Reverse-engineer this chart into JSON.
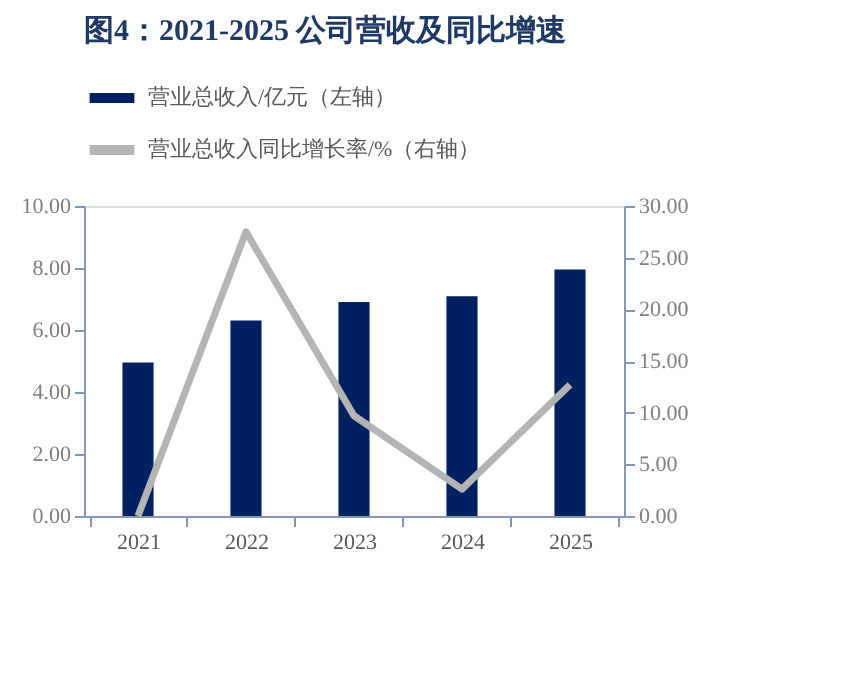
{
  "chart_data": {
    "type": "bar",
    "title": "图4：2021-2025 公司营收及同比增速",
    "categories": [
      "2021",
      "2022",
      "2023",
      "2024",
      "2025"
    ],
    "series": [
      {
        "name": "营业总收入/亿元（左轴）",
        "color": "#002060",
        "values": [
          4.95,
          6.31,
          6.9,
          7.09,
          7.95
        ]
      },
      {
        "name": "营业总收入同比增长率/%（右轴）",
        "type": "line",
        "axis": "y2",
        "color": "#b4b4b4",
        "values": [
          0,
          27.5,
          9.7,
          2.6,
          12.7
        ]
      }
    ],
    "ylim": [
      0,
      10
    ],
    "yticks": [
      {
        "value": 0,
        "label": "0.00"
      },
      {
        "value": 2,
        "label": "2.00"
      },
      {
        "value": 4,
        "label": "4.00"
      },
      {
        "value": 6,
        "label": "6.00"
      },
      {
        "value": 8,
        "label": "8.00"
      },
      {
        "value": 10,
        "label": "10.00"
      }
    ],
    "y2lim": [
      0,
      30
    ],
    "y2ticks": [
      {
        "value": 0,
        "label": "0.00"
      },
      {
        "value": 5,
        "label": "5.00"
      },
      {
        "value": 10,
        "label": "10.00"
      },
      {
        "value": 15,
        "label": "15.00"
      },
      {
        "value": 20,
        "label": "20.00"
      },
      {
        "value": 25,
        "label": "25.00"
      },
      {
        "value": 30,
        "label": "30.00"
      }
    ],
    "legend": "top",
    "grid": false,
    "marker": "none",
    "line_style": "solid"
  }
}
